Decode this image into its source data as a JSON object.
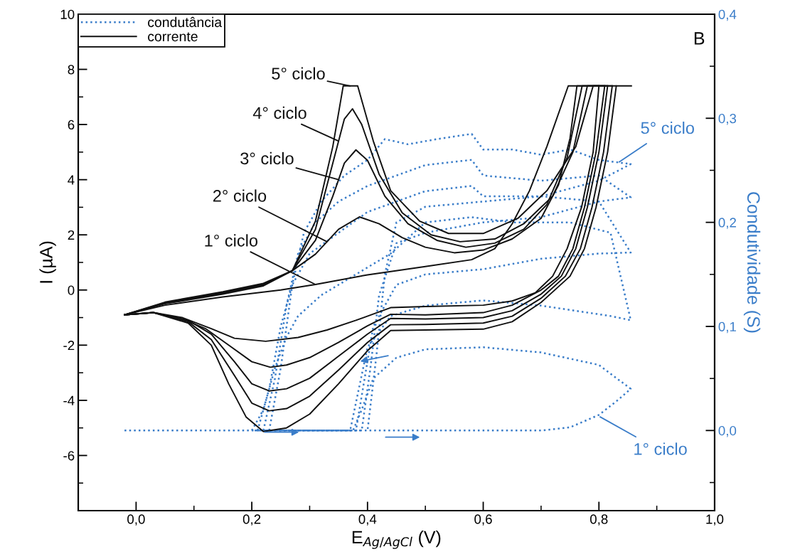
{
  "chart_data": {
    "type": "line",
    "xlabel": "E$_{Ag/AgCl}$ (V)",
    "ylabel": "I (µA)",
    "y2label": "Condutividade (S)",
    "xlim": [
      -0.1,
      1.0
    ],
    "ylim": [
      -8,
      10
    ],
    "y2lim": [
      -0.077,
      0.4
    ],
    "xticks": [
      {
        "value": 0.0,
        "label": "0,0"
      },
      {
        "value": 0.2,
        "label": "0,2"
      },
      {
        "value": 0.4,
        "label": "0,4"
      },
      {
        "value": 0.6,
        "label": "0,6"
      },
      {
        "value": 0.8,
        "label": "0,8"
      },
      {
        "value": 1.0,
        "label": "1,0"
      }
    ],
    "yticks": [
      -6,
      -4,
      -2,
      0,
      2,
      4,
      6,
      8,
      10
    ],
    "y2ticks": [
      {
        "value": 0.0,
        "label": "0,0"
      },
      {
        "value": 0.1,
        "label": "0,1"
      },
      {
        "value": 0.2,
        "label": "0,2"
      },
      {
        "value": 0.3,
        "label": "0,3"
      },
      {
        "value": 0.4,
        "label": "0,4"
      }
    ],
    "legend": "top left",
    "grid": false,
    "marker": "none",
    "series": [
      {
        "name": "condutância",
        "color": "#3a7dc9",
        "axis": "y2",
        "line_style": "dotted",
        "x": [
          -0.02,
          0.1,
          0.2,
          0.3,
          0.4,
          0.5,
          0.6,
          0.7,
          0.75,
          0.8,
          0.83,
          0.855,
          0.8,
          0.7,
          0.6,
          0.5,
          0.45,
          0.41,
          0.39,
          0.375,
          0.3,
          0.2
        ],
        "values": [
          0,
          0,
          0,
          0,
          0,
          0,
          0,
          0,
          0.003,
          0.015,
          0.028,
          0.04,
          0.063,
          0.075,
          0.08,
          0.078,
          0.07,
          0.05,
          0.02,
          0,
          0,
          0
        ]
      },
      {
        "color": "#3a7dc9",
        "axis": "y2",
        "line_style": "dotted",
        "x": [
          0.2,
          0.22,
          0.24,
          0.26,
          0.28,
          0.32,
          0.38,
          0.44,
          0.5,
          0.58,
          0.65,
          0.75,
          0.82,
          0.855,
          0.82,
          0.7,
          0.6,
          0.5,
          0.44,
          0.4,
          0.385,
          0.37,
          0.3,
          0.21
        ],
        "values": [
          0,
          0.02,
          0.06,
          0.09,
          0.11,
          0.13,
          0.15,
          0.17,
          0.2,
          0.205,
          0.2,
          0.2,
          0.19,
          0.106,
          0.11,
          0.12,
          0.125,
          0.12,
          0.11,
          0.08,
          0.04,
          0,
          0,
          0
        ]
      },
      {
        "color": "#3a7dc9",
        "axis": "y2",
        "line_style": "dotted",
        "x": [
          0.21,
          0.23,
          0.25,
          0.27,
          0.3,
          0.35,
          0.4,
          0.45,
          0.5,
          0.58,
          0.6,
          0.7,
          0.8,
          0.855,
          0.8,
          0.7,
          0.6,
          0.5,
          0.45,
          0.41,
          0.395,
          0.38,
          0.3,
          0.22
        ],
        "values": [
          0,
          0.04,
          0.1,
          0.14,
          0.17,
          0.19,
          0.21,
          0.22,
          0.23,
          0.235,
          0.225,
          0.225,
          0.22,
          0.171,
          0.17,
          0.165,
          0.155,
          0.15,
          0.14,
          0.1,
          0.05,
          0,
          0,
          0
        ]
      },
      {
        "color": "#3a7dc9",
        "axis": "y2",
        "line_style": "dotted",
        "x": [
          0.22,
          0.24,
          0.26,
          0.28,
          0.31,
          0.35,
          0.4,
          0.45,
          0.5,
          0.58,
          0.6,
          0.7,
          0.8,
          0.855,
          0.8,
          0.7,
          0.6,
          0.5,
          0.45,
          0.42,
          0.405,
          0.39,
          0.3,
          0.23
        ],
        "values": [
          0,
          0.05,
          0.12,
          0.17,
          0.2,
          0.22,
          0.235,
          0.245,
          0.255,
          0.26,
          0.245,
          0.24,
          0.245,
          0.224,
          0.22,
          0.205,
          0.2,
          0.19,
          0.18,
          0.13,
          0.06,
          0,
          0,
          0
        ]
      },
      {
        "color": "#3a7dc9",
        "axis": "y2",
        "line_style": "dotted",
        "x": [
          0.23,
          0.25,
          0.27,
          0.29,
          0.32,
          0.36,
          0.4,
          0.43,
          0.47,
          0.52,
          0.58,
          0.6,
          0.65,
          0.7,
          0.75,
          0.8,
          0.855,
          0.8,
          0.7,
          0.6,
          0.5,
          0.45,
          0.43,
          0.415,
          0.4
        ],
        "values": [
          0,
          0.06,
          0.14,
          0.19,
          0.22,
          0.245,
          0.26,
          0.28,
          0.275,
          0.28,
          0.285,
          0.27,
          0.27,
          0.265,
          0.27,
          0.26,
          0.256,
          0.24,
          0.225,
          0.22,
          0.215,
          0.2,
          0.15,
          0.07,
          0
        ]
      },
      {
        "name": "corrente",
        "color": "#111111",
        "line_style": "solid",
        "x": [
          -0.02,
          0.05,
          0.15,
          0.25,
          0.31,
          0.4,
          0.5,
          0.58,
          0.62,
          0.65,
          0.68,
          0.71,
          0.747,
          0.8
        ],
        "values": [
          -0.9,
          -0.55,
          -0.25,
          0.0,
          0.2,
          0.55,
          0.85,
          1.1,
          1.5,
          2.4,
          3.6,
          5.2,
          7.4,
          7.4
        ]
      },
      {
        "color": "#111111",
        "line_style": "solid",
        "x": [
          -0.02,
          0.03,
          0.08,
          0.13,
          0.17,
          0.224,
          0.28,
          0.33,
          0.38,
          0.44,
          0.5,
          0.6,
          0.65,
          0.69,
          0.72,
          0.745,
          0.77,
          0.79,
          0.8
        ],
        "values": [
          -0.9,
          -0.82,
          -1.0,
          -1.4,
          -1.75,
          -1.86,
          -1.72,
          -1.45,
          -1.1,
          -0.64,
          -0.6,
          -0.55,
          -0.4,
          -0.1,
          0.5,
          1.5,
          3.0,
          5.0,
          7.4
        ]
      },
      {
        "color": "#111111",
        "line_style": "solid",
        "x": [
          -0.02,
          0.05,
          0.15,
          0.22,
          0.27,
          0.31,
          0.35,
          0.386,
          0.42,
          0.46,
          0.5,
          0.55,
          0.6,
          0.65,
          0.7,
          0.73,
          0.75,
          0.762,
          0.81
        ],
        "values": [
          -0.9,
          -0.5,
          -0.15,
          0.15,
          0.7,
          1.3,
          2.2,
          2.65,
          2.4,
          1.9,
          1.55,
          1.35,
          1.45,
          1.85,
          2.6,
          3.8,
          5.5,
          7.4,
          7.4
        ]
      },
      {
        "color": "#111111",
        "line_style": "solid",
        "x": [
          -0.02,
          0.03,
          0.08,
          0.12,
          0.16,
          0.2,
          0.232,
          0.26,
          0.3,
          0.35,
          0.4,
          0.44,
          0.5,
          0.6,
          0.65,
          0.7,
          0.73,
          0.755,
          0.775,
          0.795,
          0.81
        ],
        "values": [
          -0.9,
          -0.82,
          -1.05,
          -1.4,
          -2.0,
          -2.6,
          -2.8,
          -2.72,
          -2.45,
          -1.9,
          -1.3,
          -0.88,
          -0.9,
          -0.82,
          -0.55,
          0.0,
          0.5,
          1.5,
          3.0,
          5.0,
          7.4
        ]
      },
      {
        "color": "#111111",
        "line_style": "solid",
        "x": [
          -0.02,
          0.05,
          0.15,
          0.22,
          0.27,
          0.31,
          0.34,
          0.36,
          0.38,
          0.4,
          0.43,
          0.47,
          0.52,
          0.57,
          0.62,
          0.67,
          0.71,
          0.745,
          0.771,
          0.815
        ],
        "values": [
          -0.9,
          -0.48,
          -0.12,
          0.18,
          0.7,
          1.8,
          3.4,
          4.6,
          5.08,
          4.7,
          3.4,
          2.4,
          1.8,
          1.55,
          1.7,
          2.2,
          3.1,
          4.8,
          7.4,
          7.4
        ]
      },
      {
        "color": "#111111",
        "line_style": "solid",
        "x": [
          -0.02,
          0.03,
          0.09,
          0.13,
          0.17,
          0.2,
          0.23,
          0.26,
          0.3,
          0.35,
          0.4,
          0.44,
          0.5,
          0.6,
          0.65,
          0.7,
          0.735,
          0.76,
          0.78,
          0.8,
          0.815
        ],
        "values": [
          -0.9,
          -0.82,
          -1.1,
          -1.6,
          -2.6,
          -3.4,
          -3.66,
          -3.58,
          -3.2,
          -2.4,
          -1.6,
          -1.03,
          -1.05,
          -1.0,
          -0.75,
          -0.15,
          0.5,
          1.5,
          3.0,
          5.0,
          7.4
        ]
      },
      {
        "color": "#111111",
        "line_style": "solid",
        "x": [
          -0.02,
          0.05,
          0.15,
          0.22,
          0.27,
          0.31,
          0.34,
          0.36,
          0.374,
          0.39,
          0.42,
          0.46,
          0.51,
          0.56,
          0.62,
          0.67,
          0.72,
          0.755,
          0.78,
          0.823
        ],
        "values": [
          -0.9,
          -0.46,
          -0.09,
          0.21,
          0.7,
          2.2,
          4.6,
          6.2,
          6.57,
          6.0,
          4.2,
          2.8,
          2.0,
          1.75,
          1.85,
          2.4,
          3.4,
          5.0,
          7.4,
          7.4
        ]
      },
      {
        "color": "#111111",
        "line_style": "solid",
        "x": [
          -0.02,
          0.03,
          0.09,
          0.13,
          0.17,
          0.2,
          0.23,
          0.26,
          0.3,
          0.35,
          0.4,
          0.44,
          0.5,
          0.6,
          0.65,
          0.7,
          0.742,
          0.768,
          0.788,
          0.808,
          0.823
        ],
        "values": [
          -0.9,
          -0.82,
          -1.15,
          -1.8,
          -3.1,
          -4.1,
          -4.38,
          -4.3,
          -3.85,
          -2.9,
          -1.9,
          -1.26,
          -1.25,
          -1.2,
          -0.95,
          -0.3,
          0.5,
          1.5,
          3.0,
          5.0,
          7.4
        ]
      },
      {
        "color": "#111111",
        "line_style": "solid",
        "x": [
          -0.02,
          0.05,
          0.15,
          0.22,
          0.27,
          0.31,
          0.34,
          0.358,
          0.383,
          0.41,
          0.44,
          0.49,
          0.54,
          0.6,
          0.66,
          0.71,
          0.76,
          0.79,
          0.856
        ],
        "values": [
          -0.9,
          -0.44,
          -0.06,
          0.24,
          0.7,
          2.5,
          5.2,
          7.4,
          7.4,
          5.4,
          3.6,
          2.5,
          2.05,
          2.05,
          2.6,
          3.6,
          5.2,
          7.4,
          7.4
        ]
      },
      {
        "color": "#111111",
        "line_style": "solid",
        "x": [
          -0.02,
          0.03,
          0.09,
          0.13,
          0.16,
          0.19,
          0.22,
          0.26,
          0.3,
          0.35,
          0.4,
          0.44,
          0.5,
          0.6,
          0.65,
          0.7,
          0.75,
          0.775,
          0.795,
          0.815,
          0.83
        ],
        "values": [
          -0.9,
          -0.82,
          -1.2,
          -2.0,
          -3.4,
          -4.6,
          -5.13,
          -5.0,
          -4.5,
          -3.4,
          -2.2,
          -1.47,
          -1.45,
          -1.42,
          -1.15,
          -0.45,
          0.5,
          1.5,
          3.0,
          5.0,
          7.4
        ]
      }
    ],
    "annotations": [
      "B",
      {
        "text": "5° ciclo",
        "x": 0.37,
        "y": 7.4
      },
      {
        "text": "4° ciclo",
        "x": 0.35,
        "y": 5.4
      },
      {
        "text": "3° ciclo",
        "x": 0.35,
        "y": 4.0
      },
      {
        "text": "2° ciclo",
        "x": 0.33,
        "y": 1.75
      },
      {
        "text": "1° ciclo",
        "x": 0.31,
        "y": 0.2
      },
      {
        "text": "5° ciclo",
        "x": 0.835,
        "y": 4.64
      },
      {
        "text": "1° ciclo",
        "x": 0.802,
        "y": -4.6
      }
    ]
  }
}
